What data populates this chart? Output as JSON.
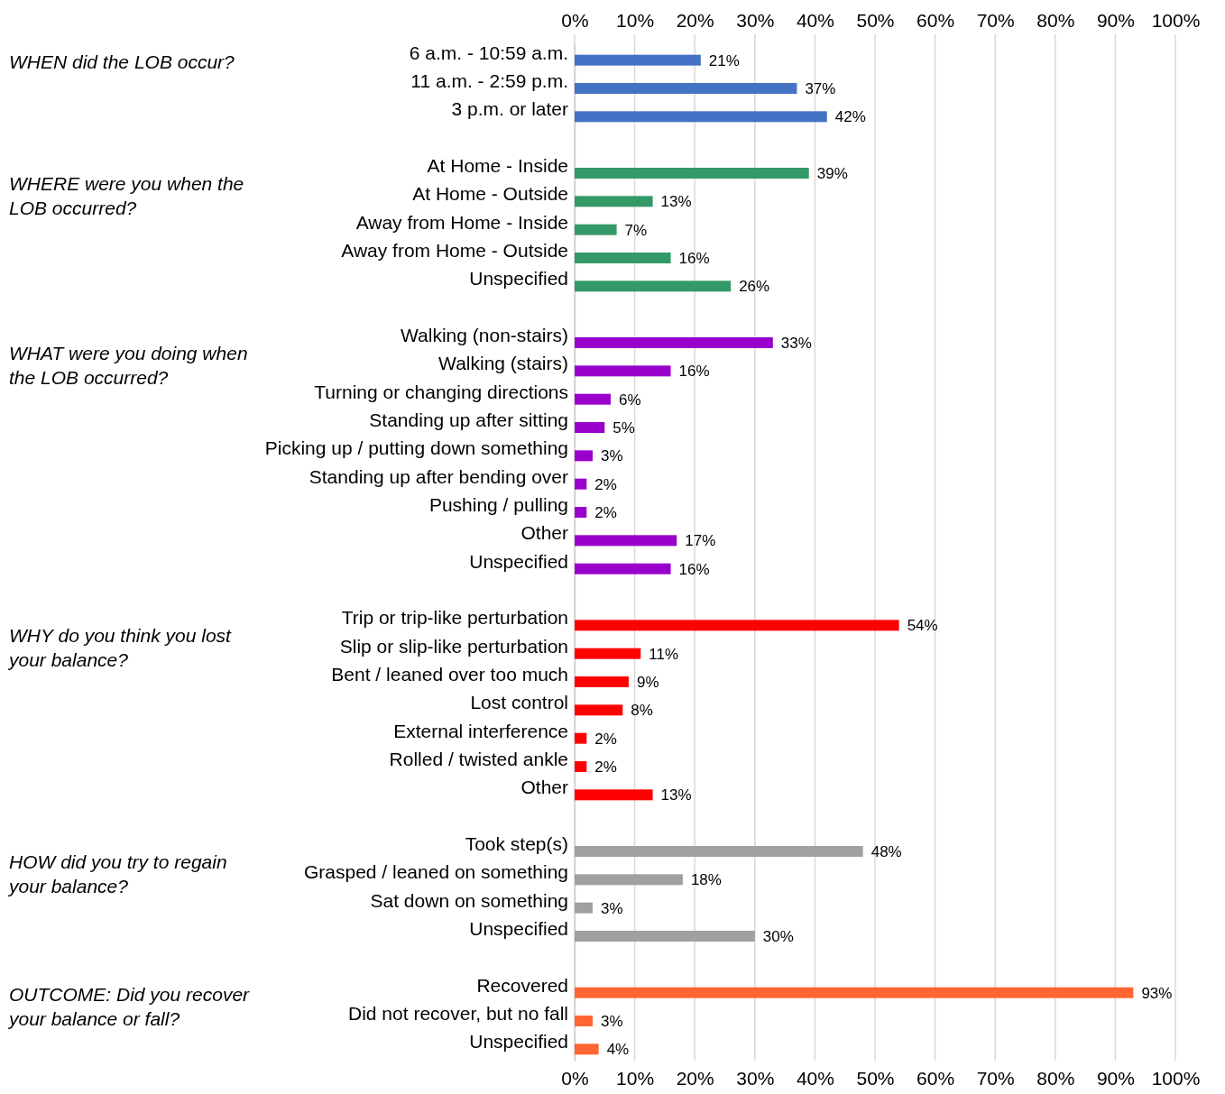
{
  "chart_data": {
    "type": "bar",
    "orientation": "horizontal",
    "categories": [
      "6 a.m. - 10:59 a.m.",
      "11 a.m. - 2:59 p.m.",
      "3 p.m. or later",
      null,
      "At Home - Inside",
      "At Home - Outside",
      "Away from Home - Inside",
      "Away from Home - Outside",
      "Unspecified",
      null,
      "Walking (non-stairs)",
      "Walking (stairs)",
      "Turning or changing directions",
      "Standing up after sitting",
      "Picking up / putting down something",
      "Standing up after bending over",
      "Pushing / pulling",
      "Other",
      "Unspecified",
      null,
      "Trip or trip-like perturbation",
      "Slip or slip-like perturbation",
      "Bent / leaned over too much",
      "Lost control",
      "External interference",
      "Rolled / twisted ankle",
      "Other",
      null,
      "Took step(s)",
      "Grasped / leaned on something",
      "Sat down on something",
      "Unspecified",
      null,
      "Recovered",
      "Did not recover, but no fall",
      "Unspecified"
    ],
    "series": [
      {
        "color": "#4472c4",
        "values": [
          21,
          37,
          42,
          null,
          null,
          null,
          null,
          null,
          null,
          null,
          null,
          null,
          null,
          null,
          null,
          null,
          null,
          null,
          null,
          null,
          null,
          null,
          null,
          null,
          null,
          null,
          null,
          null,
          null,
          null,
          null,
          null,
          null,
          null,
          null,
          null
        ],
        "value_labels": [
          "21%",
          "37%",
          "42%",
          null,
          null,
          null,
          null,
          null,
          null,
          null,
          null,
          null,
          null,
          null,
          null,
          null,
          null,
          null,
          null,
          null,
          null,
          null,
          null,
          null,
          null,
          null,
          null,
          null,
          null,
          null,
          null,
          null,
          null,
          null,
          null,
          null
        ]
      },
      {
        "color": "#339966",
        "values": [
          null,
          null,
          null,
          null,
          39,
          13,
          7,
          16,
          26,
          null,
          null,
          null,
          null,
          null,
          null,
          null,
          null,
          null,
          null,
          null,
          null,
          null,
          null,
          null,
          null,
          null,
          null,
          null,
          null,
          null,
          null,
          null,
          null,
          null,
          null,
          null
        ],
        "value_labels": [
          null,
          null,
          null,
          null,
          "39%",
          "13%",
          "7%",
          "16%",
          "26%",
          null,
          null,
          null,
          null,
          null,
          null,
          null,
          null,
          null,
          null,
          null,
          null,
          null,
          null,
          null,
          null,
          null,
          null,
          null,
          null,
          null,
          null,
          null,
          null,
          null,
          null,
          null
        ]
      },
      {
        "color": "#9900cc",
        "values": [
          null,
          null,
          null,
          null,
          null,
          null,
          null,
          null,
          null,
          null,
          33,
          16,
          6,
          5,
          3,
          2,
          2,
          17,
          16,
          null,
          null,
          null,
          null,
          null,
          null,
          null,
          null,
          null,
          null,
          null,
          null,
          null,
          null,
          null,
          null,
          null
        ],
        "value_labels": [
          null,
          null,
          null,
          null,
          null,
          null,
          null,
          null,
          null,
          null,
          "33%",
          "16%",
          "6%",
          "5%",
          "3%",
          "2%",
          "2%",
          "17%",
          "16%",
          null,
          null,
          null,
          null,
          null,
          null,
          null,
          null,
          null,
          null,
          null,
          null,
          null,
          null,
          null,
          null,
          null
        ]
      },
      {
        "color": "#ff0000",
        "values": [
          null,
          null,
          null,
          null,
          null,
          null,
          null,
          null,
          null,
          null,
          null,
          null,
          null,
          null,
          null,
          null,
          null,
          null,
          null,
          null,
          54,
          11,
          9,
          8,
          2,
          2,
          13,
          null,
          null,
          null,
          null,
          null,
          null,
          null,
          null,
          null
        ],
        "value_labels": [
          null,
          null,
          null,
          null,
          null,
          null,
          null,
          null,
          null,
          null,
          null,
          null,
          null,
          null,
          null,
          null,
          null,
          null,
          null,
          null,
          "54%",
          "11%",
          "9%",
          "8%",
          "2%",
          "2%",
          "13%",
          null,
          null,
          null,
          null,
          null,
          null,
          null,
          null,
          null
        ]
      },
      {
        "color": "#a0a0a0",
        "values": [
          null,
          null,
          null,
          null,
          null,
          null,
          null,
          null,
          null,
          null,
          null,
          null,
          null,
          null,
          null,
          null,
          null,
          null,
          null,
          null,
          null,
          null,
          null,
          null,
          null,
          null,
          null,
          null,
          48,
          18,
          3,
          30,
          null,
          null,
          null,
          null
        ],
        "value_labels": [
          null,
          null,
          null,
          null,
          null,
          null,
          null,
          null,
          null,
          null,
          null,
          null,
          null,
          null,
          null,
          null,
          null,
          null,
          null,
          null,
          null,
          null,
          null,
          null,
          null,
          null,
          null,
          null,
          "48%",
          "18%",
          "3%",
          "30%",
          null,
          null,
          null,
          null
        ]
      },
      {
        "color": "#ff6633",
        "values": [
          null,
          null,
          null,
          null,
          null,
          null,
          null,
          null,
          null,
          null,
          null,
          null,
          null,
          null,
          null,
          null,
          null,
          null,
          null,
          null,
          null,
          null,
          null,
          null,
          null,
          null,
          null,
          null,
          null,
          null,
          null,
          null,
          null,
          93,
          3,
          4
        ],
        "value_labels": [
          null,
          null,
          null,
          null,
          null,
          null,
          null,
          null,
          null,
          null,
          null,
          null,
          null,
          null,
          null,
          null,
          null,
          null,
          null,
          null,
          null,
          null,
          null,
          null,
          null,
          null,
          null,
          null,
          null,
          null,
          null,
          null,
          null,
          "93%",
          "3%",
          "4%"
        ]
      }
    ],
    "xlim": [
      0,
      100
    ],
    "xticks": [
      {
        "value": 0,
        "label": "0%"
      },
      {
        "value": 10,
        "label": "10%"
      },
      {
        "value": 20,
        "label": "20%"
      },
      {
        "value": 30,
        "label": "30%"
      },
      {
        "value": 40,
        "label": "40%"
      },
      {
        "value": 50,
        "label": "50%"
      },
      {
        "value": 60,
        "label": "60%"
      },
      {
        "value": 70,
        "label": "70%"
      },
      {
        "value": 80,
        "label": "80%"
      },
      {
        "value": 90,
        "label": "90%"
      },
      {
        "value": 100,
        "label": "100%"
      }
    ],
    "x2lim": [
      0,
      100
    ],
    "x2ticks": [
      {
        "value": 0,
        "label": "0%"
      },
      {
        "value": 10,
        "label": "10%"
      },
      {
        "value": 20,
        "label": "20%"
      },
      {
        "value": 30,
        "label": "30%"
      },
      {
        "value": 40,
        "label": "40%"
      },
      {
        "value": 50,
        "label": "50%"
      },
      {
        "value": 60,
        "label": "60%"
      },
      {
        "value": 70,
        "label": "70%"
      },
      {
        "value": 80,
        "label": "80%"
      },
      {
        "value": 90,
        "label": "90%"
      },
      {
        "value": 100,
        "label": "100%"
      }
    ],
    "grid": "x",
    "annotations": [
      "WHEN did the LOB occur?",
      "WHERE were you when the LOB occurred?",
      "WHAT were you doing when the LOB occurred?",
      "WHY do you think you lost your balance?",
      "HOW did you try to regain your balance?",
      "OUTCOME: Did you recover your balance or fall?"
    ]
  }
}
